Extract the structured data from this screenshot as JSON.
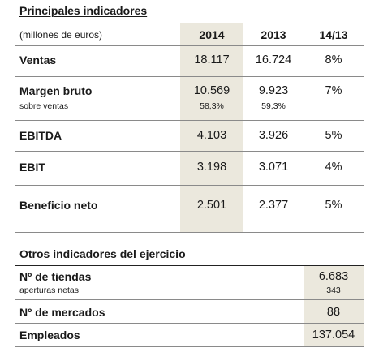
{
  "section1": {
    "title": "Principales indicadores",
    "unit_note": "(millones de euros)",
    "columns": [
      "2014",
      "2013",
      "14/13"
    ],
    "rows": [
      {
        "label": "Ventas",
        "sublabel": "",
        "v2014": "18.117",
        "v2013": "16.724",
        "change": "8%",
        "sub2014": "",
        "sub2013": ""
      },
      {
        "label": "Margen bruto",
        "sublabel": "sobre ventas",
        "v2014": "10.569",
        "v2013": "9.923",
        "change": "7%",
        "sub2014": "58,3%",
        "sub2013": "59,3%"
      },
      {
        "label": "EBITDA",
        "sublabel": "",
        "v2014": "4.103",
        "v2013": "3.926",
        "change": "5%",
        "sub2014": "",
        "sub2013": ""
      },
      {
        "label": "EBIT",
        "sublabel": "",
        "v2014": "3.198",
        "v2013": "3.071",
        "change": "4%",
        "sub2014": "",
        "sub2013": ""
      },
      {
        "label": "Beneficio neto",
        "sublabel": "",
        "v2014": "2.501",
        "v2013": "2.377",
        "change": "5%",
        "sub2014": "",
        "sub2013": ""
      }
    ]
  },
  "section2": {
    "title": "Otros indicadores del ejercicio",
    "rows": [
      {
        "label": "Nº de tiendas",
        "sublabel": "aperturas netas",
        "value": "6.683",
        "subvalue": "343"
      },
      {
        "label": "Nº de mercados",
        "sublabel": "",
        "value": "88",
        "subvalue": ""
      },
      {
        "label": "Empleados",
        "sublabel": "",
        "value": "137.054",
        "subvalue": ""
      }
    ]
  },
  "colors": {
    "highlight": "#ebe8dd",
    "text": "#1a1a1a",
    "rule": "#8a8a8a"
  }
}
